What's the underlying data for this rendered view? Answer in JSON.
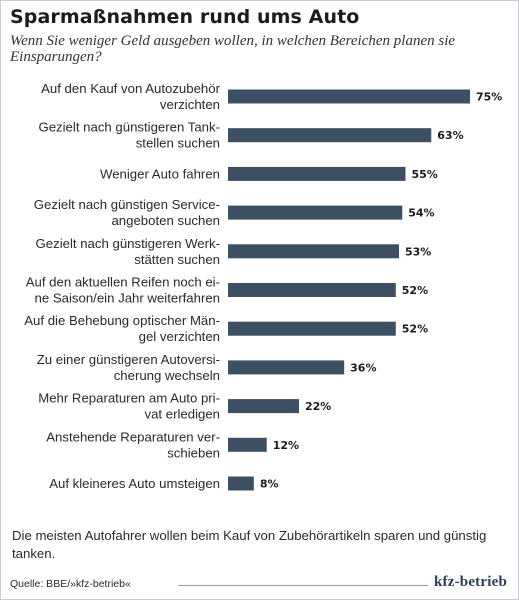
{
  "header": {
    "title": "Sparmaßnahmen rund ums Auto",
    "subtitle": "Wenn Sie weniger Geld ausgeben wollen, in welchen Bereichen planen sie Einsparungen?"
  },
  "chart_data": {
    "type": "bar",
    "orientation": "horizontal",
    "title": "Sparmaßnahmen rund ums Auto",
    "subtitle": "Wenn Sie weniger Geld ausgeben wollen, in welchen Bereichen planen sie Einsparungen?",
    "unit": "%",
    "categories": [
      [
        "Auf den Kauf von Autozubehör",
        "verzichten"
      ],
      [
        "Gezielt nach günstigeren Tank-",
        "stellen suchen"
      ],
      [
        "Weniger Auto fahren"
      ],
      [
        "Gezielt nach günstigen Service-",
        "angeboten suchen"
      ],
      [
        "Gezielt nach günstigeren Werk-",
        "stätten suchen"
      ],
      [
        "Auf den aktuellen Reifen noch ei-",
        "ne Saison/ein Jahr weiterfahren"
      ],
      [
        "Auf die Behebung optischer Män-",
        "gel verzichten"
      ],
      [
        "Zu einer günstigeren Autoversi-",
        "cherung wechseln"
      ],
      [
        "Mehr Reparaturen am Auto pri-",
        "vat erledigen"
      ],
      [
        "Anstehende Reparaturen ver-",
        "schieben"
      ],
      [
        "Auf kleineres Auto umsteigen"
      ]
    ],
    "values": [
      75,
      63,
      55,
      54,
      53,
      52,
      52,
      36,
      22,
      12,
      8
    ],
    "value_labels": [
      "75%",
      "63%",
      "55%",
      "54%",
      "53%",
      "52%",
      "52%",
      "36%",
      "22%",
      "12%",
      "8%"
    ],
    "xlim": [
      0,
      75
    ],
    "grid": false,
    "bar_color": "#3d4f63"
  },
  "footer": {
    "note": "Die meisten Autofahrer wollen beim Kauf von Zubehörartikeln  sparen und günstig tanken.",
    "source": "Quelle: BBE/»kfz-betrieb«",
    "logo": "kfz-betrieb"
  }
}
